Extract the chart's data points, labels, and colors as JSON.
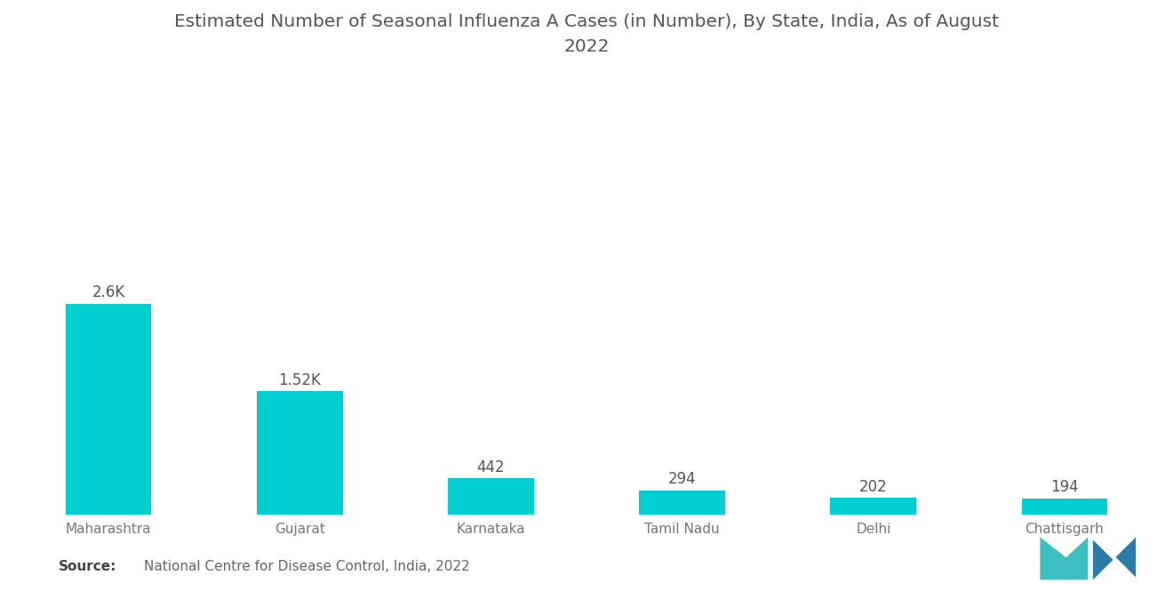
{
  "title": "Estimated Number of Seasonal Influenza A Cases (in Number), By State, India, As of August\n2022",
  "categories": [
    "Maharashtra",
    "Gujarat",
    "Karnataka",
    "Tamil Nadu",
    "Delhi",
    "Chattisgarh"
  ],
  "values": [
    2600,
    1520,
    442,
    294,
    202,
    194
  ],
  "labels": [
    "2.6K",
    "1.52K",
    "442",
    "294",
    "202",
    "194"
  ],
  "bar_color": "#00CED1",
  "background_color": "#FFFFFF",
  "source_bold": "Source:",
  "source_text": "National Centre for Disease Control, India, 2022",
  "title_fontsize": 14.5,
  "label_fontsize": 12,
  "tick_fontsize": 11,
  "source_fontsize": 11,
  "ylim": [
    0,
    4800
  ],
  "bar_width": 0.45
}
